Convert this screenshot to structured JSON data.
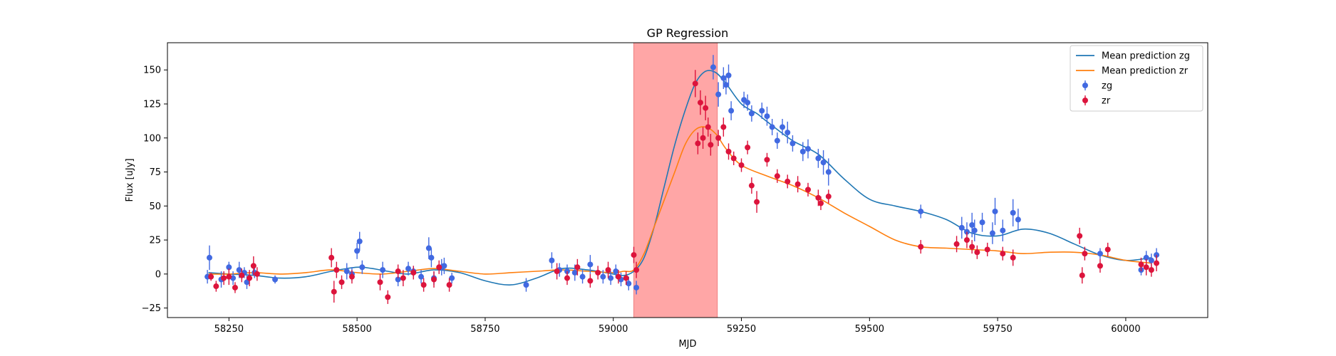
{
  "chart_data": {
    "type": "scatter",
    "title": "GP Regression",
    "xlabel": "MJD",
    "ylabel": "Flux [uJy]",
    "xlim": [
      58130,
      60160
    ],
    "ylim": [
      -32,
      170
    ],
    "xticks": [
      58250,
      58500,
      58750,
      59000,
      59250,
      59500,
      59750,
      60000
    ],
    "yticks": [
      -25,
      0,
      25,
      50,
      75,
      100,
      125,
      150
    ],
    "legend_position": "top-right",
    "shaded_region": {
      "x0": 59040,
      "x1": 59203,
      "color": "#ffa6a6"
    },
    "colors": {
      "zg_line": "#1f77b4",
      "zr_line": "#ff7f0e",
      "zg_points": "#4169e1",
      "zr_points": "#dc143c"
    },
    "legend": [
      {
        "label": "Mean prediction zg",
        "kind": "line",
        "color": "#1f77b4"
      },
      {
        "label": "Mean prediction zr",
        "kind": "line",
        "color": "#ff7f0e"
      },
      {
        "label": "zg",
        "kind": "errorbar",
        "color": "#4169e1"
      },
      {
        "label": "zr",
        "kind": "errorbar",
        "color": "#dc143c"
      }
    ],
    "series_lines": [
      {
        "name": "Mean prediction zg",
        "color": "#1f77b4",
        "x": [
          58210,
          58250,
          58300,
          58350,
          58400,
          58450,
          58500,
          58530,
          58560,
          58600,
          58650,
          58700,
          58750,
          58800,
          58850,
          58900,
          58950,
          59000,
          59020,
          59040,
          59060,
          59080,
          59100,
          59120,
          59140,
          59160,
          59180,
          59200,
          59220,
          59250,
          59280,
          59300,
          59350,
          59400,
          59450,
          59500,
          59550,
          59600,
          59650,
          59700,
          59750,
          59800,
          59850,
          59900,
          59950,
          60000,
          60050
        ],
        "y": [
          1,
          0,
          -1,
          -3,
          -2,
          2,
          5,
          4,
          2,
          0,
          3,
          1,
          -5,
          -8,
          -3,
          4,
          3,
          0,
          -1,
          2,
          12,
          35,
          65,
          95,
          120,
          140,
          149,
          148,
          140,
          125,
          118,
          112,
          98,
          88,
          70,
          55,
          50,
          46,
          40,
          30,
          28,
          33,
          30,
          22,
          14,
          10,
          12
        ]
      },
      {
        "name": "Mean prediction zr",
        "color": "#ff7f0e",
        "x": [
          58210,
          58250,
          58300,
          58350,
          58400,
          58450,
          58500,
          58550,
          58600,
          58650,
          58700,
          58750,
          58800,
          58850,
          58900,
          58950,
          59000,
          59020,
          59040,
          59060,
          59080,
          59100,
          59120,
          59140,
          59160,
          59180,
          59200,
          59220,
          59250,
          59300,
          59350,
          59400,
          59450,
          59500,
          59550,
          59600,
          59650,
          59700,
          59750,
          59800,
          59850,
          59900,
          59950,
          60000,
          60050
        ],
        "y": [
          0,
          0,
          1,
          0,
          1,
          3,
          1,
          0,
          2,
          4,
          2,
          0,
          1,
          2,
          3,
          2,
          1,
          2,
          3,
          15,
          35,
          55,
          75,
          95,
          106,
          108,
          103,
          92,
          80,
          72,
          65,
          56,
          45,
          35,
          25,
          20,
          19,
          18,
          17,
          15,
          16,
          16,
          14,
          10,
          8
        ]
      }
    ],
    "series_points": [
      {
        "name": "zg",
        "color": "#4169e1",
        "x": [
          58208,
          58212,
          58235,
          58250,
          58258,
          58270,
          58280,
          58285,
          58300,
          58340,
          58480,
          58490,
          58500,
          58505,
          58510,
          58550,
          58580,
          58600,
          58610,
          58625,
          58640,
          58645,
          58650,
          58665,
          58670,
          58685,
          58830,
          58880,
          58895,
          58910,
          58925,
          58940,
          58955,
          58980,
          58995,
          59005,
          59015,
          59030,
          59045,
          59195,
          59205,
          59215,
          59220,
          59225,
          59230,
          59255,
          59262,
          59270,
          59290,
          59300,
          59310,
          59320,
          59330,
          59340,
          59350,
          59370,
          59380,
          59400,
          59410,
          59420,
          59600,
          59680,
          59690,
          59700,
          59705,
          59720,
          59740,
          59745,
          59760,
          59780,
          59790,
          59950,
          60030,
          60040,
          60050,
          60060
        ],
        "y": [
          -2,
          12,
          -4,
          5,
          -3,
          3,
          1,
          -6,
          1,
          -4,
          2,
          0,
          17,
          24,
          5,
          3,
          -4,
          4,
          2,
          -2,
          19,
          12,
          -3,
          5,
          6,
          -3,
          -8,
          10,
          3,
          2,
          1,
          -2,
          7,
          -2,
          -3,
          2,
          -4,
          -7,
          -10,
          152,
          132,
          144,
          139,
          146,
          120,
          128,
          126,
          118,
          120,
          116,
          108,
          98,
          108,
          104,
          96,
          90,
          92,
          85,
          82,
          75,
          46,
          34,
          31,
          36,
          32,
          38,
          30,
          46,
          32,
          45,
          40,
          15,
          3,
          12,
          10,
          14
        ],
        "err": [
          5,
          9,
          6,
          4,
          5,
          6,
          4,
          5,
          4,
          3,
          6,
          5,
          6,
          7,
          5,
          6,
          5,
          5,
          4,
          5,
          8,
          7,
          5,
          6,
          6,
          4,
          5,
          6,
          5,
          5,
          6,
          5,
          7,
          5,
          5,
          5,
          5,
          5,
          5,
          9,
          9,
          8,
          7,
          8,
          7,
          6,
          6,
          6,
          6,
          7,
          6,
          6,
          6,
          8,
          6,
          7,
          7,
          7,
          9,
          10,
          5,
          8,
          7,
          9,
          8,
          7,
          8,
          10,
          8,
          10,
          8,
          4,
          4,
          5,
          5,
          5
        ]
      },
      {
        "name": "zr",
        "color": "#dc143c",
        "x": [
          58215,
          58225,
          58240,
          58250,
          58262,
          58275,
          58290,
          58298,
          58305,
          58450,
          58455,
          58460,
          58470,
          58490,
          58545,
          58560,
          58580,
          58590,
          58610,
          58630,
          58650,
          58660,
          58680,
          58890,
          58910,
          58930,
          58955,
          58970,
          58990,
          59010,
          59025,
          59040,
          59045,
          59160,
          59165,
          59170,
          59175,
          59180,
          59185,
          59190,
          59205,
          59215,
          59225,
          59235,
          59250,
          59262,
          59270,
          59280,
          59300,
          59320,
          59340,
          59360,
          59380,
          59400,
          59405,
          59420,
          59600,
          59670,
          59690,
          59700,
          59710,
          59730,
          59760,
          59780,
          59910,
          59915,
          59920,
          59950,
          59965,
          60030,
          60040,
          60050,
          60060
        ],
        "y": [
          -2,
          -9,
          -3,
          -2,
          -10,
          -1,
          -3,
          6,
          0,
          12,
          -13,
          3,
          -6,
          -2,
          -6,
          -17,
          2,
          -3,
          1,
          -8,
          -4,
          5,
          -8,
          2,
          -3,
          5,
          -5,
          1,
          3,
          -2,
          -3,
          14,
          3,
          140,
          96,
          126,
          100,
          122,
          108,
          95,
          100,
          108,
          90,
          85,
          80,
          93,
          65,
          53,
          84,
          72,
          68,
          66,
          62,
          56,
          52,
          57,
          20,
          22,
          25,
          20,
          16,
          18,
          15,
          12,
          28,
          -1,
          15,
          6,
          18,
          7,
          5,
          3,
          8
        ],
        "err": [
          3,
          4,
          5,
          6,
          4,
          5,
          6,
          7,
          5,
          7,
          8,
          6,
          5,
          5,
          6,
          5,
          5,
          6,
          5,
          5,
          6,
          5,
          5,
          6,
          5,
          6,
          5,
          5,
          6,
          5,
          5,
          6,
          6,
          10,
          8,
          9,
          8,
          9,
          7,
          8,
          6,
          7,
          6,
          5,
          5,
          5,
          6,
          8,
          5,
          5,
          5,
          6,
          5,
          6,
          5,
          5,
          5,
          6,
          6,
          5,
          5,
          5,
          5,
          6,
          6,
          6,
          5,
          5,
          5,
          5,
          6,
          5,
          6
        ]
      }
    ]
  }
}
